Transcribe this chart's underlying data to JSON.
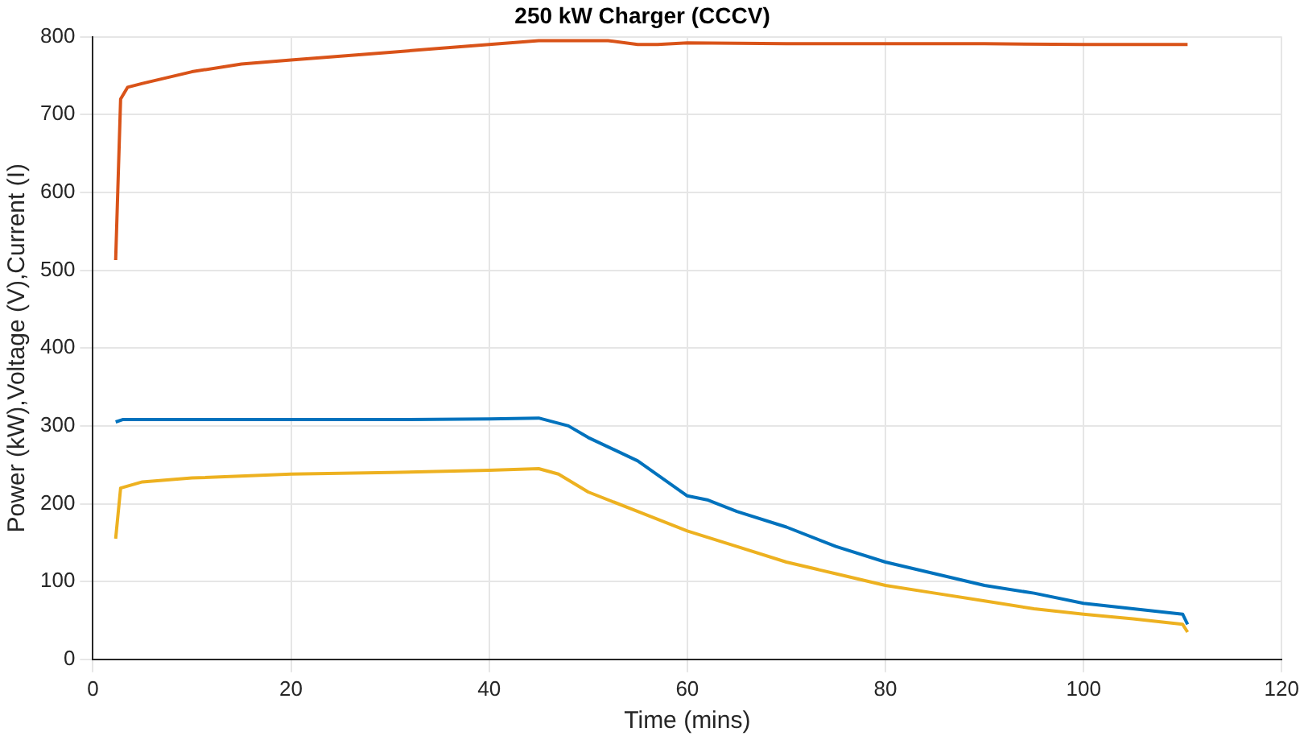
{
  "chart_data": {
    "type": "line",
    "title": "250 kW Charger (CCCV)",
    "xlabel": "Time (mins)",
    "ylabel": "Power (kW),Voltage (V),Current (I)",
    "xlim": [
      0,
      120
    ],
    "xticks": [
      0,
      20,
      40,
      60,
      80,
      100,
      120
    ],
    "ylim": [
      0,
      800
    ],
    "yticks": [
      0,
      100,
      200,
      300,
      400,
      500,
      600,
      700,
      800
    ],
    "grid": true,
    "legend": false,
    "marker": "none",
    "line_style": "solid",
    "series": [
      {
        "color": "#d95319",
        "x": [
          2.3,
          2.8,
          3.5,
          5,
          10,
          15,
          20,
          25,
          30,
          35,
          40,
          45,
          50,
          52,
          55,
          57,
          60,
          70,
          80,
          90,
          100,
          110.5
        ],
        "values": [
          513,
          720,
          735,
          740,
          755,
          765,
          770,
          775,
          780,
          785,
          790,
          795,
          795,
          795,
          790,
          790,
          792,
          791,
          791,
          791,
          790,
          790
        ]
      },
      {
        "color": "#0072bd",
        "x": [
          2.3,
          3,
          10,
          20,
          30,
          40,
          45,
          48,
          50,
          55,
          60,
          62,
          65,
          70,
          75,
          80,
          85,
          90,
          95,
          100,
          105,
          110,
          110.5
        ],
        "values": [
          305,
          308,
          308,
          308,
          308,
          309,
          310,
          300,
          285,
          255,
          210,
          205,
          190,
          170,
          145,
          125,
          110,
          95,
          85,
          72,
          65,
          58,
          45
        ]
      },
      {
        "color": "#edb120",
        "x": [
          2.3,
          2.8,
          5,
          10,
          20,
          30,
          40,
          45,
          47,
          50,
          55,
          60,
          65,
          70,
          75,
          80,
          85,
          90,
          95,
          100,
          105,
          110,
          110.5
        ],
        "values": [
          155,
          220,
          228,
          233,
          238,
          240,
          243,
          245,
          238,
          215,
          190,
          165,
          145,
          125,
          110,
          95,
          85,
          75,
          65,
          58,
          52,
          45,
          35
        ]
      }
    ]
  }
}
